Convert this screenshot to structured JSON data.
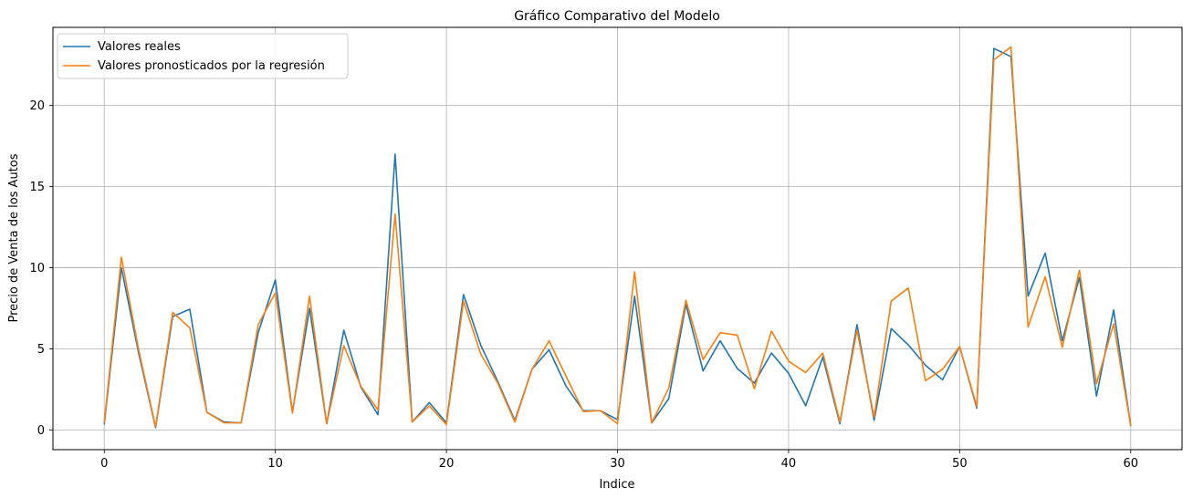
{
  "chart_data": {
    "type": "line",
    "title": "Gráfico Comparativo del Modelo",
    "xlabel": "Indice",
    "ylabel": "Precio de Venta de los Autos",
    "xlim": [
      -3,
      63
    ],
    "ylim": [
      -1.2,
      24.8
    ],
    "xticks": [
      0,
      10,
      20,
      30,
      40,
      50,
      60
    ],
    "yticks": [
      0,
      5,
      10,
      15,
      20
    ],
    "xtick_labels": [
      "0",
      "10",
      "20",
      "30",
      "40",
      "50",
      "60"
    ],
    "ytick_labels": [
      "0",
      "5",
      "10",
      "15",
      "20"
    ],
    "grid": true,
    "legend_position": "top-left",
    "x": [
      0,
      1,
      2,
      3,
      4,
      5,
      6,
      7,
      8,
      9,
      10,
      11,
      12,
      13,
      14,
      15,
      16,
      17,
      18,
      19,
      20,
      21,
      22,
      23,
      24,
      25,
      26,
      27,
      28,
      29,
      30,
      31,
      32,
      33,
      34,
      35,
      36,
      37,
      38,
      39,
      40,
      41,
      42,
      43,
      44,
      45,
      46,
      47,
      48,
      49,
      50,
      51,
      52,
      53,
      54,
      55,
      56,
      57,
      58,
      59,
      60
    ],
    "series": [
      {
        "name": "Valores reales",
        "color": "#1f77b4",
        "values": [
          0.35,
          10.0,
          4.8,
          0.15,
          7.0,
          7.45,
          1.1,
          0.5,
          0.45,
          6.0,
          9.25,
          1.1,
          7.5,
          0.4,
          6.15,
          2.65,
          0.95,
          17.0,
          0.5,
          1.7,
          0.45,
          8.35,
          5.25,
          3.0,
          0.6,
          3.75,
          4.95,
          2.7,
          1.2,
          1.2,
          0.65,
          8.25,
          0.45,
          1.95,
          7.75,
          3.65,
          5.5,
          3.8,
          2.9,
          4.75,
          3.5,
          1.5,
          4.5,
          0.4,
          6.5,
          0.6,
          6.25,
          5.25,
          4.0,
          3.1,
          5.15,
          1.35,
          23.5,
          23.0,
          8.25,
          10.9,
          5.5,
          9.4,
          2.1,
          7.4,
          0.25
        ]
      },
      {
        "name": "Valores pronosticados por la regresión",
        "color": "#ff7f0e",
        "values": [
          0.45,
          10.65,
          5.0,
          0.2,
          7.25,
          6.3,
          1.1,
          0.45,
          0.45,
          6.5,
          8.45,
          1.05,
          8.25,
          0.4,
          5.2,
          2.7,
          1.25,
          13.3,
          0.5,
          1.5,
          0.35,
          7.95,
          4.7,
          2.9,
          0.5,
          3.75,
          5.5,
          3.3,
          1.15,
          1.2,
          0.4,
          9.75,
          0.45,
          2.6,
          8.0,
          4.35,
          6.0,
          5.85,
          2.55,
          6.1,
          4.25,
          3.55,
          4.75,
          0.5,
          6.15,
          0.8,
          7.95,
          8.75,
          3.05,
          3.75,
          5.15,
          1.45,
          22.8,
          23.6,
          6.35,
          9.45,
          5.1,
          9.85,
          2.85,
          6.55,
          0.25
        ]
      }
    ]
  }
}
